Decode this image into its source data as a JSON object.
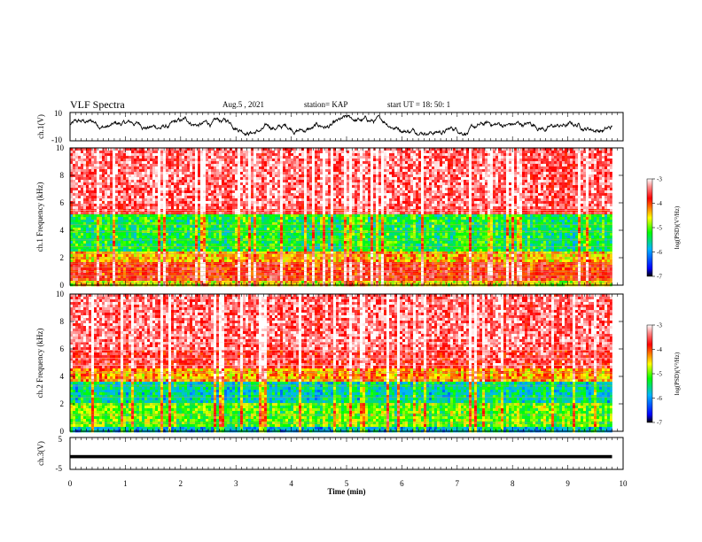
{
  "header": {
    "title": "VLF Spectra",
    "date": "Aug.5  , 2021",
    "station": "station= KAP",
    "start": "start  UT  =   18: 50: 1"
  },
  "chart_data": [
    {
      "type": "line",
      "panel": "ch1-waveform",
      "ylabel": "ch.1(V)",
      "ylim": [
        -10,
        10
      ],
      "yticklabels": [
        "-10",
        "10"
      ],
      "xlim": [
        0,
        10
      ],
      "data_extent_min": [
        0,
        9.8
      ],
      "description_of_values": "noisy waveform oscillating roughly between -5 and +8 V",
      "approx_range": [
        -6,
        8
      ]
    },
    {
      "type": "heatmap",
      "panel": "ch1-spectrogram",
      "ylabel": "ch.1\nFrequency  (kHz)",
      "ylim": [
        0,
        10
      ],
      "yticks": [
        0,
        2,
        4,
        6,
        8,
        10
      ],
      "yticklabels": [
        "0",
        "2",
        "4",
        "6",
        "8",
        "10"
      ],
      "xlim": [
        0,
        10
      ],
      "data_extent_min": [
        0,
        9.8
      ],
      "colorbar": {
        "label": "log(PSD)(V²/Hz)",
        "range": [
          -7,
          -3
        ],
        "ticklabels": [
          "-3",
          "-4",
          "-5",
          "-6",
          "-7"
        ]
      },
      "bands_khz": [
        {
          "from": 0,
          "to": 0.3,
          "level": -4.6
        },
        {
          "from": 0.3,
          "to": 1.6,
          "level": -3.8
        },
        {
          "from": 1.6,
          "to": 2.4,
          "level": -4.4
        },
        {
          "from": 2.4,
          "to": 5.2,
          "level": -5.3
        },
        {
          "from": 5.2,
          "to": 5.6,
          "level": -3.6
        },
        {
          "from": 5.6,
          "to": 10,
          "level": -3.4
        }
      ]
    },
    {
      "type": "heatmap",
      "panel": "ch2-spectrogram",
      "ylabel": "ch.2\nFrequency  (kHz)",
      "ylim": [
        0,
        10
      ],
      "yticks": [
        0,
        2,
        4,
        6,
        8,
        10
      ],
      "yticklabels": [
        "0",
        "2",
        "4",
        "6",
        "8",
        "10"
      ],
      "xlim": [
        0,
        10
      ],
      "data_extent_min": [
        0,
        9.8
      ],
      "colorbar": {
        "label": "log(PSD)(V²/Hz)",
        "range": [
          -7,
          -3
        ],
        "ticklabels": [
          "-3",
          "-4",
          "-5",
          "-6",
          "-7"
        ]
      },
      "bands_khz": [
        {
          "from": 0,
          "to": 0.4,
          "level": -5.8
        },
        {
          "from": 0.4,
          "to": 2.0,
          "level": -5.0
        },
        {
          "from": 2.0,
          "to": 3.6,
          "level": -5.6
        },
        {
          "from": 3.6,
          "to": 4.6,
          "level": -4.3
        },
        {
          "from": 4.6,
          "to": 6.0,
          "level": -3.6
        },
        {
          "from": 6.0,
          "to": 10,
          "level": -3.4
        }
      ]
    },
    {
      "type": "line",
      "panel": "ch3-waveform",
      "ylabel": "ch.3(V)",
      "ylim": [
        -5,
        5
      ],
      "yticklabels": [
        "-5",
        "5"
      ],
      "xlabel": "Time  (min)",
      "xlim": [
        0,
        10
      ],
      "xticks": [
        0,
        1,
        2,
        3,
        4,
        5,
        6,
        7,
        8,
        9,
        10
      ],
      "xticklabels": [
        "0",
        "1",
        "2",
        "3",
        "4",
        "5",
        "6",
        "7",
        "8",
        "9",
        "10"
      ],
      "data_extent_min": [
        0,
        9.8
      ],
      "approx_range": [
        -1.5,
        -0.5
      ]
    }
  ]
}
